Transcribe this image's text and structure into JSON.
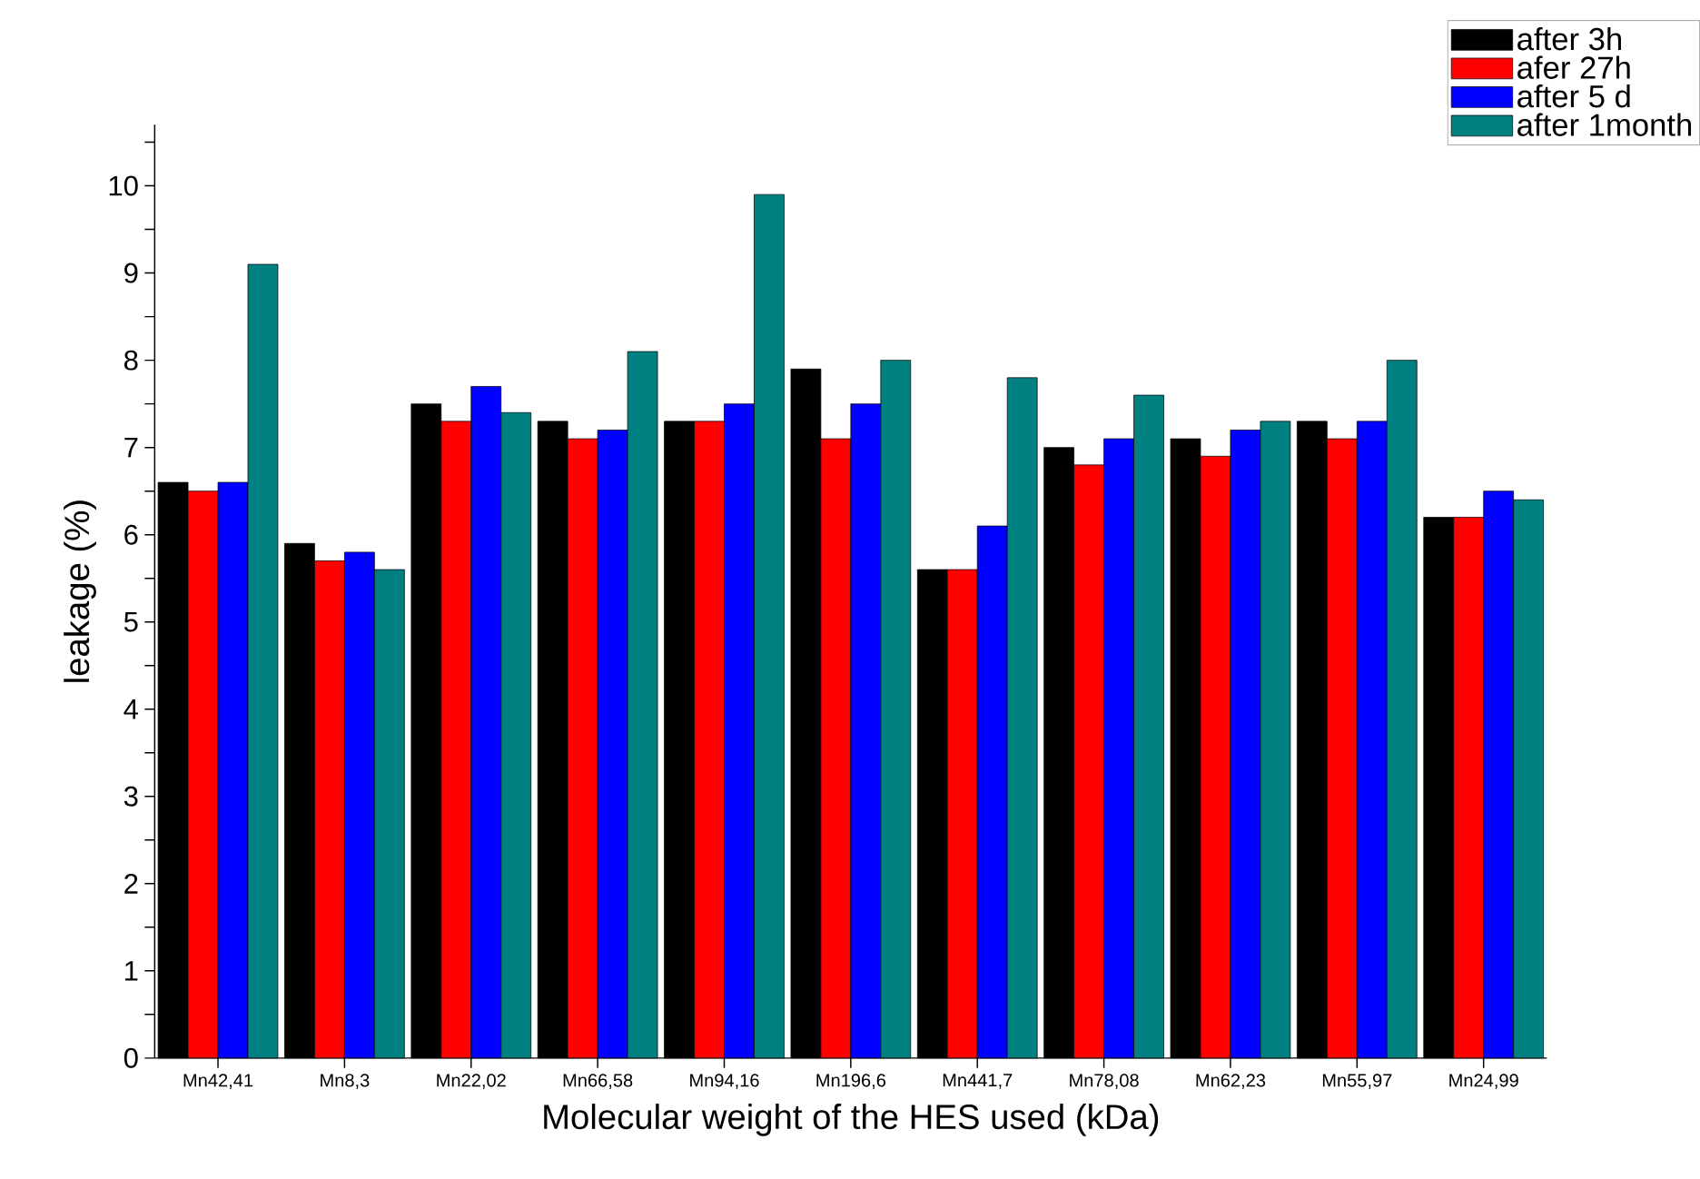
{
  "chart_data": {
    "type": "bar",
    "xlabel": "Molecular weight of the HES used (kDa)",
    "ylabel": "leakage (%)",
    "categories": [
      "Mn42,41",
      "Mn8,3",
      "Mn22,02",
      "Mn66,58",
      "Mn94,16",
      "Mn196,6",
      "Mn441,7",
      "Mn78,08",
      "Mn62,23",
      "Mn55,97",
      "Mn24,99"
    ],
    "series": [
      {
        "name": "after 3h",
        "color": "#000000",
        "values": [
          6.6,
          5.9,
          7.5,
          7.3,
          7.3,
          7.9,
          5.6,
          7.0,
          7.1,
          7.3,
          6.2
        ]
      },
      {
        "name": "afer 27h",
        "color": "#ff0000",
        "values": [
          6.5,
          5.7,
          7.3,
          7.1,
          7.3,
          7.1,
          5.6,
          6.8,
          6.9,
          7.1,
          6.2
        ]
      },
      {
        "name": "after 5 d",
        "color": "#0000ff",
        "values": [
          6.6,
          5.8,
          7.7,
          7.2,
          7.5,
          7.5,
          6.1,
          7.1,
          7.2,
          7.3,
          6.5
        ]
      },
      {
        "name": "after 1month",
        "color": "#008080",
        "values": [
          9.1,
          5.6,
          7.4,
          8.1,
          9.9,
          8.0,
          7.8,
          7.6,
          7.3,
          8.0,
          6.4
        ]
      }
    ],
    "ylim": [
      0,
      10.7
    ],
    "yticks": [
      0,
      {
        "value": 0.5,
        "label": null
      },
      1,
      {
        "value": 1.5,
        "label": null
      },
      2,
      {
        "value": 2.5,
        "label": null
      },
      3,
      {
        "value": 3.5,
        "label": null
      },
      4,
      {
        "value": 4.5,
        "label": null
      },
      5,
      {
        "value": 5.5,
        "label": null
      },
      6,
      {
        "value": 6.5,
        "label": null
      },
      7,
      {
        "value": 7.5,
        "label": null
      },
      8,
      {
        "value": 8.5,
        "label": null
      },
      9,
      {
        "value": 9.5,
        "label": null
      },
      10,
      {
        "value": 10.5,
        "label": null
      }
    ],
    "grid": false,
    "legend": "top right"
  }
}
